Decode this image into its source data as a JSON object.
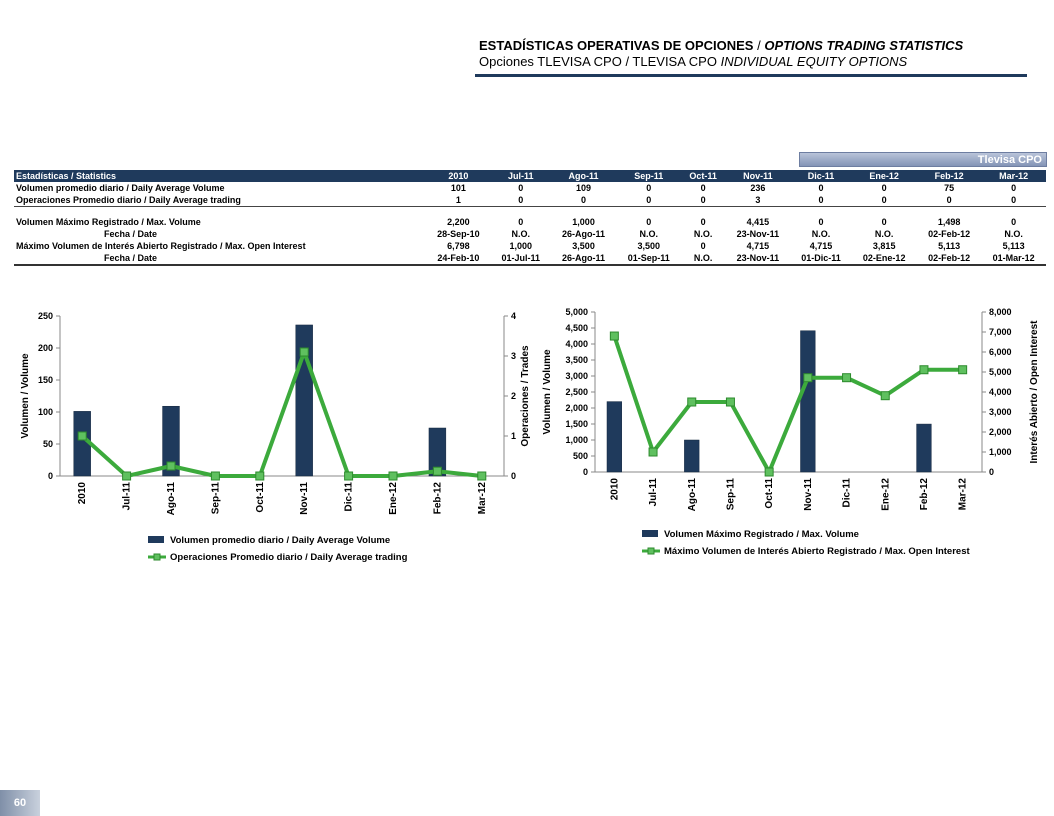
{
  "header": {
    "title_bold": "ESTADÍSTICAS OPERATIVAS DE OPCIONES",
    "title_sep": " / ",
    "title_italic": "OPTIONS TRADING STATISTICS",
    "subtitle_plain": "Opciones TLEVISA CPO / TLEVISA CPO ",
    "subtitle_italic": "INDIVIDUAL EQUITY OPTIONS"
  },
  "badge": "Tlevisa CPO",
  "table": {
    "headers": [
      "Estadísticas / Statistics",
      "2010",
      "Jul-11",
      "Ago-11",
      "Sep-11",
      "Oct-11",
      "Nov-11",
      "Dic-11",
      "Ene-12",
      "Feb-12",
      "Mar-12"
    ],
    "rows": [
      {
        "label": "Volumen promedio diario / Daily Average Volume",
        "values": [
          "101",
          "0",
          "109",
          "0",
          "0",
          "236",
          "0",
          "0",
          "75",
          "0"
        ]
      },
      {
        "label": "Operaciones Promedio diario / Daily Average trading",
        "values": [
          "1",
          "0",
          "0",
          "0",
          "0",
          "3",
          "0",
          "0",
          "0",
          "0"
        ]
      },
      {
        "label": "Volumen Máximo Registrado / Max. Volume",
        "values": [
          "2,200",
          "0",
          "1,000",
          "0",
          "0",
          "4,415",
          "0",
          "0",
          "1,498",
          "0"
        ]
      },
      {
        "label": "Fecha / Date",
        "values": [
          "28-Sep-10",
          "N.O.",
          "26-Ago-11",
          "N.O.",
          "N.O.",
          "23-Nov-11",
          "N.O.",
          "N.O.",
          "02-Feb-12",
          "N.O."
        ]
      },
      {
        "label": "Máximo Volumen de Interés Abierto Registrado / Max. Open Interest",
        "values": [
          "6,798",
          "1,000",
          "3,500",
          "3,500",
          "0",
          "4,715",
          "4,715",
          "3,815",
          "5,113",
          "5,113"
        ]
      },
      {
        "label": "Fecha / Date",
        "values": [
          "24-Feb-10",
          "01-Jul-11",
          "26-Ago-11",
          "01-Sep-11",
          "N.O.",
          "23-Nov-11",
          "01-Dic-11",
          "02-Ene-12",
          "02-Feb-12",
          "01-Mar-12"
        ]
      }
    ]
  },
  "chart_data": [
    {
      "type": "bar",
      "categories": [
        "2010",
        "Jul-11",
        "Ago-11",
        "Sep-11",
        "Oct-11",
        "Nov-11",
        "Dic-11",
        "Ene-12",
        "Feb-12",
        "Mar-12"
      ],
      "series": [
        {
          "name": "Volumen promedio diario / Daily Average Volume",
          "kind": "bar",
          "axis": "left",
          "values": [
            101,
            0,
            109,
            0,
            0,
            236,
            0,
            0,
            75,
            0
          ]
        },
        {
          "name": "Operaciones Promedio diario / Daily Average trading",
          "kind": "line",
          "axis": "right",
          "values": [
            1,
            0,
            0.25,
            0,
            0,
            3.1,
            0,
            0,
            0.12,
            0
          ]
        }
      ],
      "ylabel": "Volumen / Volume",
      "y2label": "Operaciones / Trades",
      "ylim": [
        0,
        250
      ],
      "yticks": [
        0,
        50,
        100,
        150,
        200,
        250
      ],
      "y2lim": [
        0,
        4
      ],
      "y2ticks": [
        0,
        1,
        2,
        3,
        4
      ],
      "grid": false,
      "legend": "bottom",
      "colors": {
        "bar": "#1f3a5c",
        "line": "#3caa3c"
      }
    },
    {
      "type": "bar",
      "categories": [
        "2010",
        "Jul-11",
        "Ago-11",
        "Sep-11",
        "Oct-11",
        "Nov-11",
        "Dic-11",
        "Ene-12",
        "Feb-12",
        "Mar-12"
      ],
      "series": [
        {
          "name": "Volumen Máximo Registrado  / Max. Volume",
          "kind": "bar",
          "axis": "left",
          "values": [
            2200,
            0,
            1000,
            0,
            0,
            4415,
            0,
            0,
            1498,
            0
          ]
        },
        {
          "name": "Máximo Volumen de Interés Abierto Registrado  / Max. Open Interest",
          "kind": "line",
          "axis": "right",
          "values": [
            6798,
            1000,
            3500,
            3500,
            0,
            4715,
            4715,
            3815,
            5113,
            5113
          ]
        }
      ],
      "ylabel": "Volumen / Volume",
      "y2label": "Interés Abierto / Open Interest",
      "ylim": [
        0,
        5000
      ],
      "yticks": [
        0,
        500,
        1000,
        1500,
        2000,
        2500,
        3000,
        3500,
        4000,
        4500,
        5000
      ],
      "y2lim": [
        0,
        8000
      ],
      "y2ticks": [
        0,
        1000,
        2000,
        3000,
        4000,
        5000,
        6000,
        7000,
        8000
      ],
      "grid": false,
      "legend": "bottom",
      "colors": {
        "bar": "#1f3a5c",
        "line": "#3caa3c"
      }
    }
  ],
  "page_number": "60"
}
